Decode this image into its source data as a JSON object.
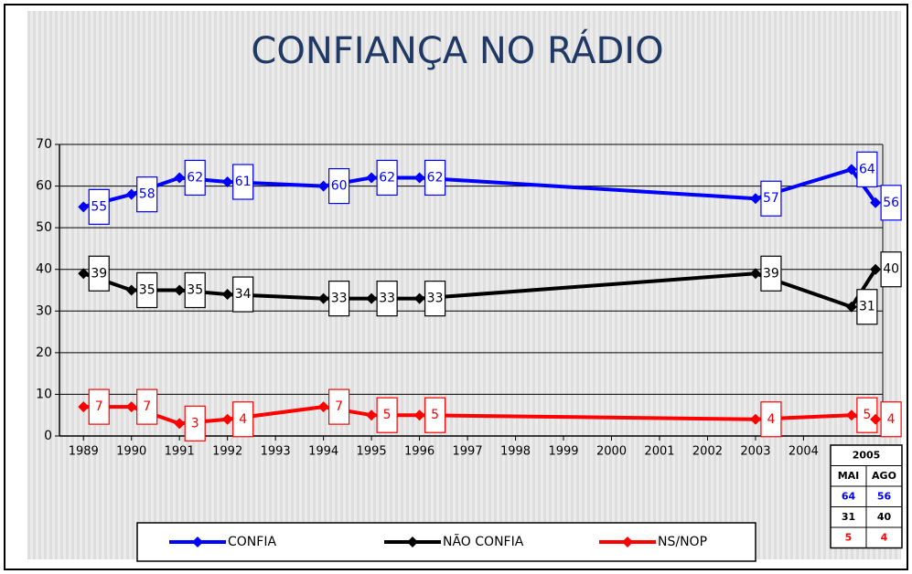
{
  "chart_data": {
    "type": "line",
    "title": "CONFIANÇA NO RÁDIO",
    "x": [
      1989,
      1990,
      1991,
      1992,
      1994,
      1995,
      1996,
      2003,
      2005.0,
      2005.5
    ],
    "series": [
      {
        "name": "CONFIA",
        "color": "#0000ff",
        "values": [
          55,
          58,
          62,
          61,
          60,
          62,
          62,
          57,
          64,
          56
        ]
      },
      {
        "name": "NÃO CONFIA",
        "color": "#000000",
        "values": [
          39,
          35,
          35,
          34,
          33,
          33,
          33,
          39,
          31,
          40
        ]
      },
      {
        "name": "NS/NOP",
        "color": "#ff0000",
        "values": [
          7,
          7,
          3,
          4,
          7,
          5,
          5,
          4,
          5,
          4
        ]
      }
    ],
    "xlim": [
      1988.5,
      2005.65
    ],
    "xticks": [
      1989,
      1990,
      1991,
      1992,
      1993,
      1994,
      1995,
      1996,
      1997,
      1998,
      1999,
      2000,
      2001,
      2002,
      2003,
      2004
    ],
    "ylim": [
      0,
      70
    ],
    "yticks": [
      0,
      10,
      20,
      30,
      40,
      50,
      60,
      70
    ],
    "grid": true,
    "legend": "bottom",
    "table": {
      "header": "2005",
      "columns": [
        "MAI",
        "AGO"
      ],
      "rows": [
        [
          64,
          56
        ],
        [
          31,
          40
        ],
        [
          5,
          4
        ]
      ]
    }
  }
}
